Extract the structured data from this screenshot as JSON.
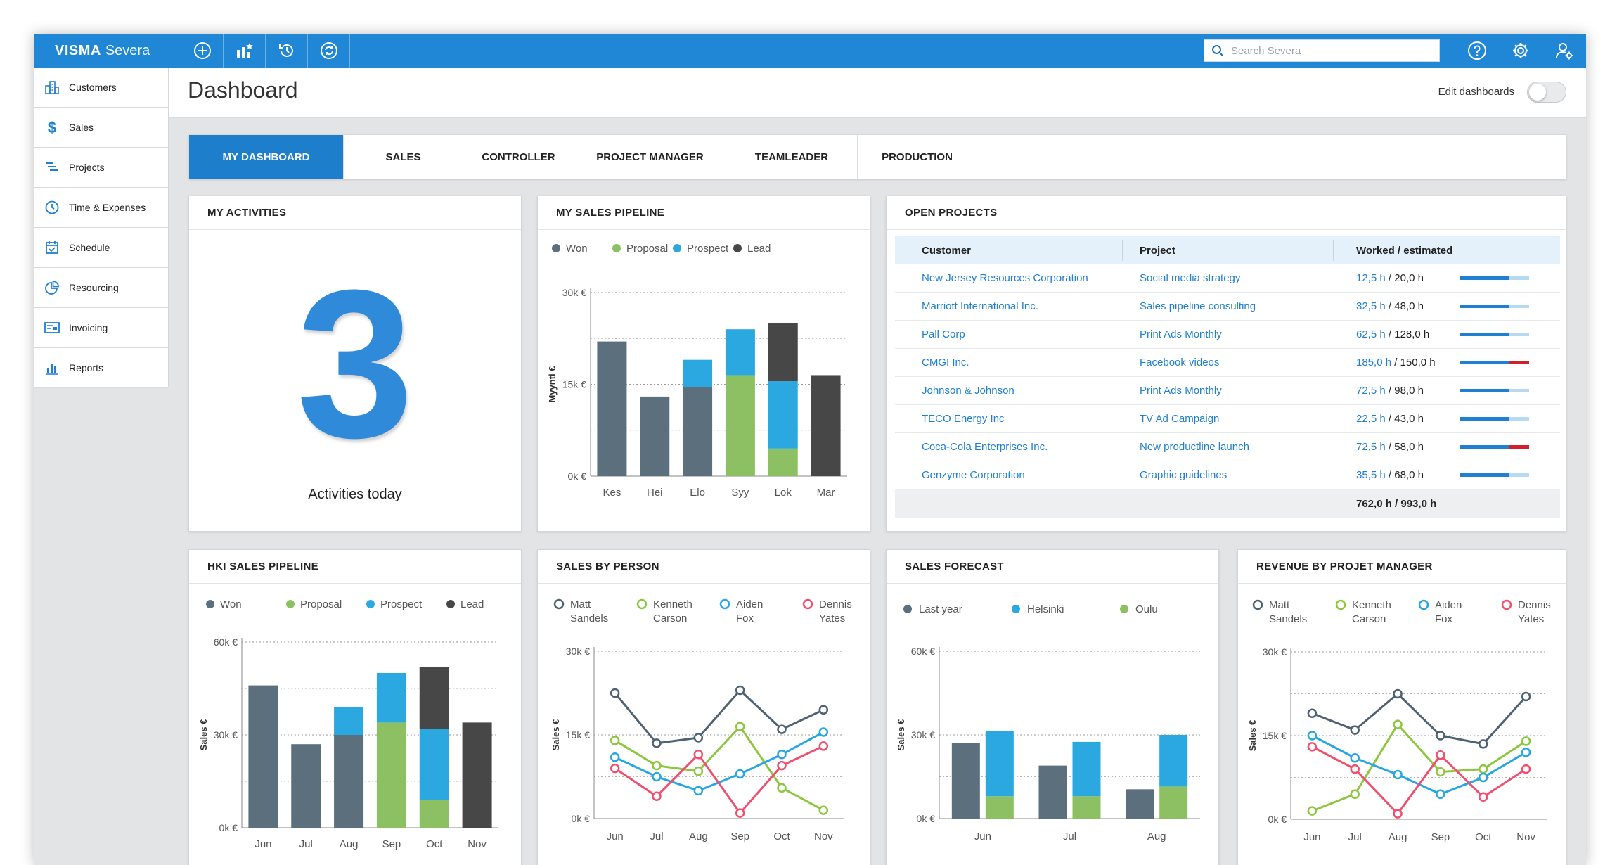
{
  "app": {
    "logo_brand": "VISMA",
    "logo_product": "Severa",
    "search_placeholder": "Search Severa"
  },
  "sidebar": {
    "items": [
      {
        "label": "Customers",
        "icon": "customers-icon"
      },
      {
        "label": "Sales",
        "icon": "dollar-icon"
      },
      {
        "label": "Projects",
        "icon": "projects-icon"
      },
      {
        "label": "Time & Expenses",
        "icon": "clock-icon"
      },
      {
        "label": "Schedule",
        "icon": "calendar-icon"
      },
      {
        "label": "Resourcing",
        "icon": "pie-chart-icon"
      },
      {
        "label": "Invoicing",
        "icon": "invoice-icon"
      },
      {
        "label": "Reports",
        "icon": "bar-chart-icon"
      }
    ]
  },
  "header": {
    "title": "Dashboard",
    "edit_label": "Edit dashboards",
    "edit_toggle_on": false
  },
  "tabs": [
    {
      "label": "MY DASHBOARD",
      "active": true
    },
    {
      "label": "SALES",
      "active": false
    },
    {
      "label": "CONTROLLER",
      "active": false
    },
    {
      "label": "PROJECT MANAGER",
      "active": false
    },
    {
      "label": "TEAMLEADER",
      "active": false
    },
    {
      "label": "PRODUCTION",
      "active": false
    }
  ],
  "activities": {
    "title": "MY ACTIVITIES",
    "count": "3",
    "label": "Activities today"
  },
  "open_projects": {
    "title": "OPEN PROJECTS",
    "columns": [
      "Customer",
      "Project",
      "Worked / estimated"
    ],
    "rows": [
      {
        "customer": "New Jersey Resources Corporation",
        "project": "Social media strategy",
        "worked": "12,5 h",
        "estimated": " / 20,0 h",
        "progress": 0.7,
        "over": 0
      },
      {
        "customer": "Marriott International Inc.",
        "project": "Sales pipeline consulting",
        "worked": "32,5 h",
        "estimated": " / 48,0 h",
        "progress": 0.7,
        "over": 0
      },
      {
        "customer": "Pall Corp",
        "project": "Print Ads Monthly",
        "worked": "62,5 h",
        "estimated": " / 128,0 h",
        "progress": 0.7,
        "over": 0
      },
      {
        "customer": "CMGI Inc.",
        "project": "Facebook videos",
        "worked": "185,0 h",
        "estimated": " / 150,0 h",
        "progress": 0.7,
        "over": 0.3
      },
      {
        "customer": "Johnson & Johnson",
        "project": "Print Ads Monthly",
        "worked": "72,5 h",
        "estimated": " / 98,0 h",
        "progress": 0.7,
        "over": 0
      },
      {
        "customer": "TECO Energy Inc",
        "project": "TV Ad Campaign",
        "worked": "22,5 h",
        "estimated": " / 43,0 h",
        "progress": 0.7,
        "over": 0
      },
      {
        "customer": "Coca-Cola Enterprises Inc.",
        "project": "New productline launch",
        "worked": "72,5 h",
        "estimated": " / 58,0 h",
        "progress": 0.7,
        "over": 0.3
      },
      {
        "customer": "Genzyme Corporation",
        "project": "Graphic guidelines",
        "worked": "35,5 h",
        "estimated": " / 68,0 h",
        "progress": 0.7,
        "over": 0
      }
    ],
    "total": "762,0 h / 993,0 h"
  },
  "colors": {
    "won": "#5b6f7d",
    "proposal": "#8dc063",
    "prospect": "#2ba8e0",
    "lead": "#474747",
    "matt": "#4f6273",
    "kenneth": "#8dc63f",
    "aiden": "#27a7e1",
    "dennis": "#f0506e",
    "last_year": "#5b6f7d",
    "helsinki": "#2ba8e0",
    "oulu": "#8dc063"
  },
  "chart_data": [
    {
      "id": "my-sales-pipeline",
      "type": "bar",
      "stacked": true,
      "title": "MY SALES PIPELINE",
      "ylabel": "Myynti €",
      "ylim": [
        0,
        30000
      ],
      "yticks": [
        "0k €",
        "15k €",
        "30k €"
      ],
      "categories": [
        "Kes",
        "Hei",
        "Elo",
        "Syy",
        "Lok",
        "Mar"
      ],
      "series": [
        {
          "name": "Won",
          "values": [
            22000,
            13000,
            14500,
            0,
            0,
            0
          ]
        },
        {
          "name": "Proposal",
          "values": [
            0,
            0,
            0,
            16500,
            4500,
            0
          ]
        },
        {
          "name": "Prospect",
          "values": [
            0,
            0,
            4500,
            7500,
            11000,
            0
          ]
        },
        {
          "name": "Lead",
          "values": [
            0,
            0,
            0,
            0,
            9500,
            16500
          ]
        }
      ]
    },
    {
      "id": "hki-sales-pipeline",
      "type": "bar",
      "stacked": true,
      "title": "HKI SALES PIPELINE",
      "ylabel": "Sales €",
      "ylim": [
        0,
        60000
      ],
      "yticks": [
        "0k €",
        "30k €",
        "60k €"
      ],
      "categories": [
        "Jun",
        "Jul",
        "Aug",
        "Sep",
        "Oct",
        "Nov"
      ],
      "series": [
        {
          "name": "Won",
          "values": [
            46000,
            27000,
            30000,
            0,
            0,
            0
          ]
        },
        {
          "name": "Proposal",
          "values": [
            0,
            0,
            0,
            34000,
            9000,
            0
          ]
        },
        {
          "name": "Prospect",
          "values": [
            0,
            0,
            9000,
            16000,
            23000,
            0
          ]
        },
        {
          "name": "Lead",
          "values": [
            0,
            0,
            0,
            0,
            20000,
            34000
          ]
        }
      ]
    },
    {
      "id": "sales-by-person",
      "type": "line",
      "title": "SALES BY PERSON",
      "ylabel": "Sales €",
      "ylim": [
        0,
        30000
      ],
      "yticks": [
        "0k €",
        "15k €",
        "30k €"
      ],
      "categories": [
        "Jun",
        "Jul",
        "Aug",
        "Sep",
        "Oct",
        "Nov"
      ],
      "series": [
        {
          "name": "Matt Sandels",
          "name_lines": [
            "Matt",
            "Sandels"
          ],
          "values": [
            22500,
            13500,
            14500,
            23000,
            16000,
            19500
          ]
        },
        {
          "name": "Kenneth Carson",
          "name_lines": [
            "Kenneth",
            "Carson"
          ],
          "values": [
            14000,
            9500,
            8500,
            16500,
            5500,
            1500
          ]
        },
        {
          "name": "Aiden Fox",
          "name_lines": [
            "Aiden",
            "Fox"
          ],
          "values": [
            11000,
            7500,
            5000,
            8000,
            11500,
            15500
          ]
        },
        {
          "name": "Dennis Yates",
          "name_lines": [
            "Dennis",
            "Yates"
          ],
          "values": [
            9000,
            4000,
            11500,
            1000,
            9500,
            13000
          ]
        }
      ]
    },
    {
      "id": "sales-forecast",
      "type": "bar",
      "stacked": false,
      "title": "SALES FORECAST",
      "ylabel": "Sales €",
      "ylim": [
        0,
        60000
      ],
      "yticks": [
        "0k €",
        "30k €",
        "60k €"
      ],
      "categories": [
        "Jun",
        "Jul",
        "Aug"
      ],
      "series": [
        {
          "name": "Last year",
          "values": [
            27000,
            19000,
            10500
          ]
        },
        {
          "name": "Helsinki",
          "values": [
            23500,
            19500,
            18500
          ],
          "stack_base": "Oulu"
        },
        {
          "name": "Oulu",
          "values": [
            8000,
            8000,
            11500
          ]
        }
      ]
    },
    {
      "id": "revenue-by-project-manager",
      "type": "line",
      "title": "REVENUE BY PROJET MANAGER",
      "ylabel": "Sales €",
      "ylim": [
        0,
        30000
      ],
      "yticks": [
        "0k €",
        "15k €",
        "30k €"
      ],
      "categories": [
        "Jun",
        "Jul",
        "Aug",
        "Sep",
        "Oct",
        "Nov"
      ],
      "series": [
        {
          "name": "Matt Sandels",
          "name_lines": [
            "Matt",
            "Sandels"
          ],
          "values": [
            19000,
            16000,
            22500,
            15000,
            13500,
            22000
          ]
        },
        {
          "name": "Kenneth Carson",
          "name_lines": [
            "Kenneth",
            "Carson"
          ],
          "values": [
            1500,
            4500,
            17000,
            8500,
            9000,
            14000
          ]
        },
        {
          "name": "Aiden Fox",
          "name_lines": [
            "Aiden",
            "Fox"
          ],
          "values": [
            15000,
            11000,
            8000,
            4500,
            7500,
            12000
          ]
        },
        {
          "name": "Dennis Yates",
          "name_lines": [
            "Dennis",
            "Yates"
          ],
          "values": [
            13000,
            9000,
            1000,
            11500,
            4000,
            9000
          ]
        }
      ]
    }
  ]
}
